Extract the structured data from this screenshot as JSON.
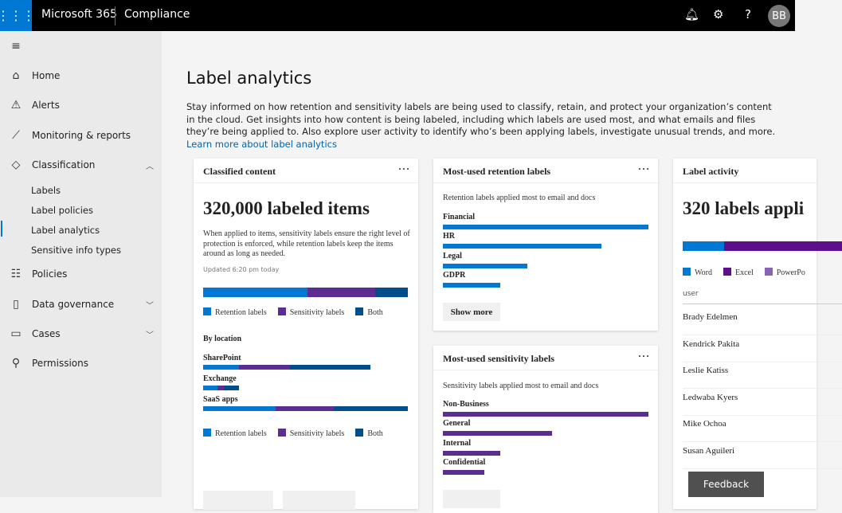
{
  "topbar": {
    "brand": "Microsoft 365",
    "app": "Compliance",
    "avatar": "BB",
    "icons": [
      "waffle-icon",
      "bell-icon",
      "gear-icon",
      "help-icon"
    ]
  },
  "sidebar": {
    "items": [
      {
        "label": "Home",
        "icon": "⌂"
      },
      {
        "label": "Alerts",
        "icon": "⚠"
      },
      {
        "label": "Monitoring & reports",
        "icon": "📈"
      },
      {
        "label": "Classification",
        "icon": "◇",
        "expanded": true
      },
      {
        "label": "Policies",
        "icon": "☰"
      },
      {
        "label": "Data governance",
        "icon": "🔒"
      },
      {
        "label": "Cases",
        "icon": "▭"
      },
      {
        "label": "Permissions",
        "icon": "⚲"
      }
    ],
    "sub": [
      "Labels",
      "Label policies",
      "Label analytics",
      "Sensitive info types"
    ],
    "selected": "Label analytics"
  },
  "page": {
    "title": "Label analytics",
    "description": "Stay informed on how retention and sensitivity labels are being used to classify, retain, and protect your organization’s content in the cloud. Get insights into how content is being labeled, including which labels are used most, and what emails and files they’re being applied to. Also explore user activity to identify who’s been applying labels, investigate unusual trends, and more. ",
    "link": "Learn more about label analytics"
  },
  "colors": {
    "retention": "#0078d4",
    "sensitivity": "#5c2d91",
    "both": "#004e8c",
    "word": "#0078d4",
    "excel": "#5c0f8b",
    "powerpoint": "#8764b8"
  },
  "classified": {
    "title": "Classified content",
    "headline": "320,000 labeled items",
    "text": "When applied to items, sensitivity labels ensure the right level of protection is enforced, while retention labels keep the items around as long as needed.",
    "updated": "Updated 6:20 pm today",
    "total": [
      51,
      33,
      16
    ],
    "legend": [
      "Retention labels",
      "Sensitivity labels",
      "Both"
    ],
    "by_location": "By location",
    "locations": [
      {
        "name": "SharePoint",
        "values": [
          45,
          64,
          101
        ]
      },
      {
        "name": "Exchange",
        "values": [
          18,
          8,
          19
        ]
      },
      {
        "name": "SaaS apps",
        "values": [
          91,
          73,
          93
        ]
      }
    ]
  },
  "retention": {
    "title": "Most-used retention labels",
    "subtitle": "Retention labels applied most to email and docs",
    "labels": [
      {
        "name": "Financial",
        "value": 100
      },
      {
        "name": "HR",
        "value": 77
      },
      {
        "name": "Legal",
        "value": 41
      },
      {
        "name": "GDPR",
        "value": 28
      }
    ],
    "button": "Show more"
  },
  "sensitivity": {
    "title": "Most-used sensitivity labels",
    "subtitle": "Sensitivity labels applied most to email and docs",
    "labels": [
      {
        "name": "Non-Business",
        "value": 100
      },
      {
        "name": "General",
        "value": 53
      },
      {
        "name": "Internal",
        "value": 28
      },
      {
        "name": "Confidential",
        "value": 20
      }
    ]
  },
  "activity": {
    "title": "Label activity",
    "headline": "320 labels appli",
    "legend": [
      "Word",
      "Excel",
      "PowerPo"
    ],
    "column": "user",
    "users": [
      "Brady Edelmen",
      "Kendrick Pakita",
      "Leslie Katiss",
      "Ledwaba Kyers",
      "Mike Ochoa",
      "Susan Aguileri"
    ]
  },
  "feedback": "Feedback"
}
